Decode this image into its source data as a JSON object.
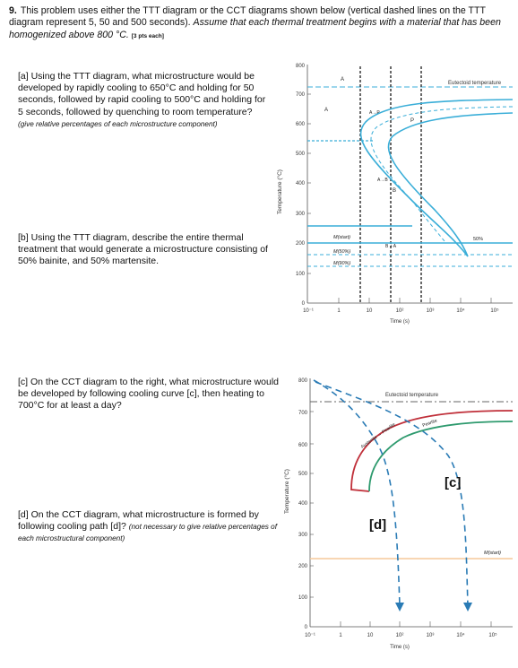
{
  "intro": {
    "number": "9.",
    "text": "This problem uses either the TTT diagram or the CCT diagrams shown below (vertical dashed lines on the TTT diagram represent 5, 50 and 500 seconds).",
    "italic": "Assume that each thermal treatment begins with a material that has been homogenized above 800 °C.",
    "points": "[3 pts each]"
  },
  "questions": {
    "a": {
      "text": "[a] Using the TTT diagram, what microstructure would be developed by rapidly cooling to 650°C and holding for 50 seconds, followed by rapid cooling to 500°C and holding for 5 seconds, followed by quenching to room temperature?",
      "note": "(give relative percentages of each microstructure component)"
    },
    "b": {
      "text": "[b] Using the TTT diagram, describe the entire thermal treatment that would generate a microstructure consisting of 50% bainite, and 50% martensite."
    },
    "c": {
      "text": "[c] On the CCT diagram to the right, what microstructure would be developed by following cooling curve [c], then heating to 700°C for at least a day?"
    },
    "d": {
      "text": "[d] On the CCT diagram, what microstructure is formed by following cooling path [d]?",
      "note": "(not necessary to give relative percentages of each microstructural component)"
    }
  },
  "ttt": {
    "ylabel": "Temperature (°C)",
    "xlabel": "Time (s)",
    "yticks": [
      "800",
      "700",
      "600",
      "500",
      "400",
      "300",
      "200",
      "100",
      "0"
    ],
    "xticks": [
      "10⁻¹",
      "1",
      "10",
      "10²",
      "10³",
      "10⁴",
      "10⁵"
    ],
    "labels": {
      "eutectoid": "Eutectoid temperature",
      "A1": "A",
      "A2": "A",
      "P": "P",
      "A_arrow_P": "A→P",
      "A_arrow_B": "A→B",
      "B": "B",
      "B_plus_A": "B + A",
      "M_start": "M(start)",
      "M_50": "M(50%)",
      "M_90": "M(90%)",
      "pct50": "50%"
    },
    "colors": {
      "curve": "#3aaed8",
      "dashed_vertical": "#444444"
    }
  },
  "cct": {
    "ylabel": "Temperature (°C)",
    "xlabel": "Time (s)",
    "yticks": [
      "800",
      "700",
      "600",
      "500",
      "400",
      "300",
      "200",
      "100",
      "0"
    ],
    "xticks": [
      "10⁻¹",
      "1",
      "10",
      "10²",
      "10³",
      "10⁴",
      "10⁵"
    ],
    "labels": {
      "eutectoid": "Eutectoid temperature",
      "austenite_pearlite": "Austenite → Pearlite",
      "pearlite": "Pearlite",
      "c": "[c]",
      "d": "[d]",
      "M_start": "M(start)"
    },
    "colors": {
      "start": "#c0303a",
      "finish": "#2e9a6e",
      "path": "#2a7bb5",
      "ms_line": "#f5c99a"
    }
  }
}
